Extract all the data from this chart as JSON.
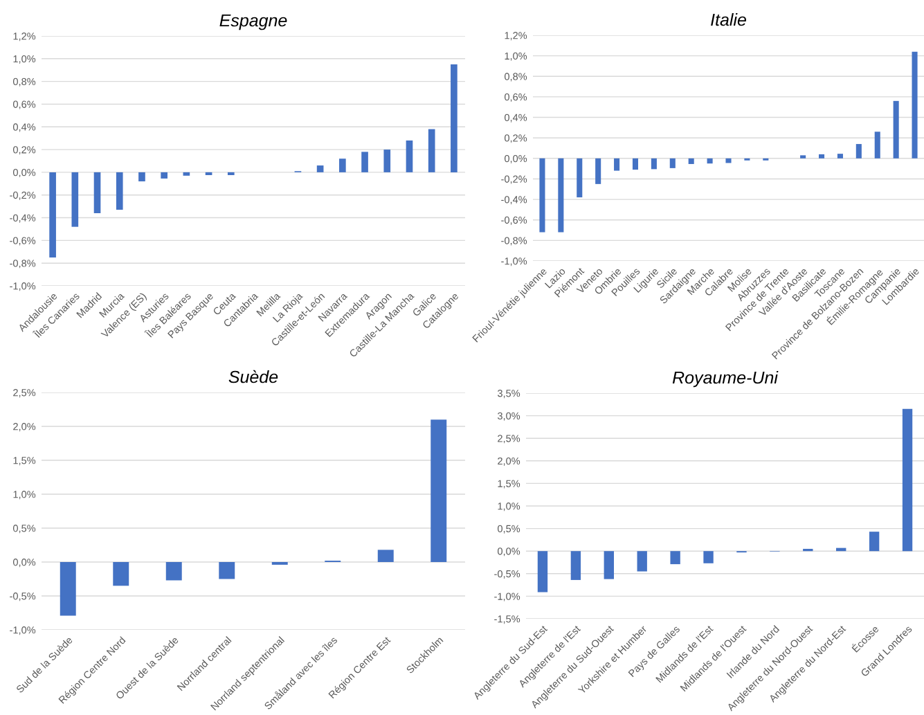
{
  "chart_data": [
    {
      "type": "bar",
      "title": "Espagne",
      "color": "#4472c4",
      "grid": "y",
      "categories": [
        "Andalousie",
        "Îles Canaries",
        "Madrid",
        "Murcia",
        "Valence (ES)",
        "Asturies",
        "Îles Baléares",
        "Pays Basque",
        "Ceuta",
        "Cantabria",
        "Melilla",
        "La Rioja",
        "Castille-et-León",
        "Navarra",
        "Extremadura",
        "Aragon",
        "Castille-La Mancha",
        "Galice",
        "Catalogne"
      ],
      "values": [
        -0.75,
        -0.48,
        -0.36,
        -0.33,
        -0.08,
        -0.055,
        -0.03,
        -0.025,
        -0.025,
        0,
        0,
        0.01,
        0.06,
        0.12,
        0.18,
        0.2,
        0.28,
        0.38,
        0.95
      ],
      "ylim": [
        -1.0,
        1.2
      ],
      "yticks": [
        {
          "value": -1.0,
          "label": "-1,0%"
        },
        {
          "value": -0.8,
          "label": "-0,8%"
        },
        {
          "value": -0.6,
          "label": "-0,6%"
        },
        {
          "value": -0.4,
          "label": "-0,4%"
        },
        {
          "value": -0.2,
          "label": "-0,2%"
        },
        {
          "value": 0,
          "label": "0,0%"
        },
        {
          "value": 0.2,
          "label": "0,2%"
        },
        {
          "value": 0.4,
          "label": "0,4%"
        },
        {
          "value": 0.6,
          "label": "0,6%"
        },
        {
          "value": 0.8,
          "label": "0,8%"
        },
        {
          "value": 1.0,
          "label": "1,0%"
        },
        {
          "value": 1.2,
          "label": "1,2%"
        }
      ]
    },
    {
      "type": "bar",
      "title": "Italie",
      "color": "#4472c4",
      "grid": "y",
      "categories": [
        "Frioul-Vénétie julienne",
        "Lazio",
        "Piémont",
        "Veneto",
        "Ombrie",
        "Pouilles",
        "Ligurie",
        "Sicile",
        "Sardaigne",
        "Marche",
        "Calabre",
        "Molise",
        "Abruzzes",
        "Province de Trente",
        "Vallée d'Aoste",
        "Basilicate",
        "Toscane",
        "Province de Bolzano-Bozen",
        "Émilie-Romagne",
        "Campanie",
        "Lombardie"
      ],
      "values": [
        -0.72,
        -0.72,
        -0.38,
        -0.25,
        -0.12,
        -0.11,
        -0.105,
        -0.095,
        -0.055,
        -0.05,
        -0.045,
        -0.02,
        -0.02,
        0,
        0.03,
        0.04,
        0.045,
        0.14,
        0.26,
        0.56,
        1.04
      ],
      "ylim": [
        -1.0,
        1.2
      ],
      "yticks": [
        {
          "value": -1.0,
          "label": "-1,0%"
        },
        {
          "value": -0.8,
          "label": "-0,8%"
        },
        {
          "value": -0.6,
          "label": "-0,6%"
        },
        {
          "value": -0.4,
          "label": "-0,4%"
        },
        {
          "value": -0.2,
          "label": "-0,2%"
        },
        {
          "value": 0,
          "label": "0,0%"
        },
        {
          "value": 0.2,
          "label": "0,2%"
        },
        {
          "value": 0.4,
          "label": "0,4%"
        },
        {
          "value": 0.6,
          "label": "0,6%"
        },
        {
          "value": 0.8,
          "label": "0,8%"
        },
        {
          "value": 1.0,
          "label": "1,0%"
        },
        {
          "value": 1.2,
          "label": "1,2%"
        }
      ]
    },
    {
      "type": "bar",
      "title": "Suède",
      "color": "#4472c4",
      "grid": "y",
      "categories": [
        "Sud de la Suède",
        "Région Centre Nord",
        "Ouest de la Suède",
        "Norrland central",
        "Norrland septentrional",
        "Småland avec les îles",
        "Région Centre Est",
        "Stockholm"
      ],
      "values": [
        -0.79,
        -0.35,
        -0.27,
        -0.25,
        -0.04,
        0.02,
        0.18,
        2.1
      ],
      "ylim": [
        -1.0,
        2.5
      ],
      "yticks": [
        {
          "value": -1.0,
          "label": "-1,0%"
        },
        {
          "value": -0.5,
          "label": "-0,5%"
        },
        {
          "value": 0,
          "label": "0,0%"
        },
        {
          "value": 0.5,
          "label": "0,5%"
        },
        {
          "value": 1.0,
          "label": "1,0%"
        },
        {
          "value": 1.5,
          "label": "1,5%"
        },
        {
          "value": 2.0,
          "label": "2,0%"
        },
        {
          "value": 2.5,
          "label": "2,5%"
        }
      ]
    },
    {
      "type": "bar",
      "title": "Royaume-Uni",
      "color": "#4472c4",
      "grid": "y",
      "categories": [
        "Angleterre du Sud-Est",
        "Angleterre de l'Est",
        "Angleterre du Sud-Ouest",
        "Yorkshire et Humber",
        "Pays de Galles",
        "Midlands de l'Est",
        "Midlands de l'Ouest",
        "Irlande du Nord",
        "Angleterre du Nord-Ouest",
        "Angleterre du Nord-Est",
        "Écosse",
        "Grand Londres"
      ],
      "values": [
        -0.91,
        -0.64,
        -0.62,
        -0.45,
        -0.29,
        -0.27,
        -0.03,
        -0.01,
        0.05,
        0.07,
        0.43,
        3.15
      ],
      "ylim": [
        -1.5,
        3.5
      ],
      "yticks": [
        {
          "value": -1.5,
          "label": "-1,5%"
        },
        {
          "value": -1.0,
          "label": "-1,0%"
        },
        {
          "value": -0.5,
          "label": "-0,5%"
        },
        {
          "value": 0,
          "label": "0,0%"
        },
        {
          "value": 0.5,
          "label": "0,5%"
        },
        {
          "value": 1.0,
          "label": "1,0%"
        },
        {
          "value": 1.5,
          "label": "1,5%"
        },
        {
          "value": 2.0,
          "label": "2,0%"
        },
        {
          "value": 2.5,
          "label": "2,5%"
        },
        {
          "value": 3.0,
          "label": "3,0%"
        },
        {
          "value": 3.5,
          "label": "3,5%"
        }
      ]
    }
  ]
}
